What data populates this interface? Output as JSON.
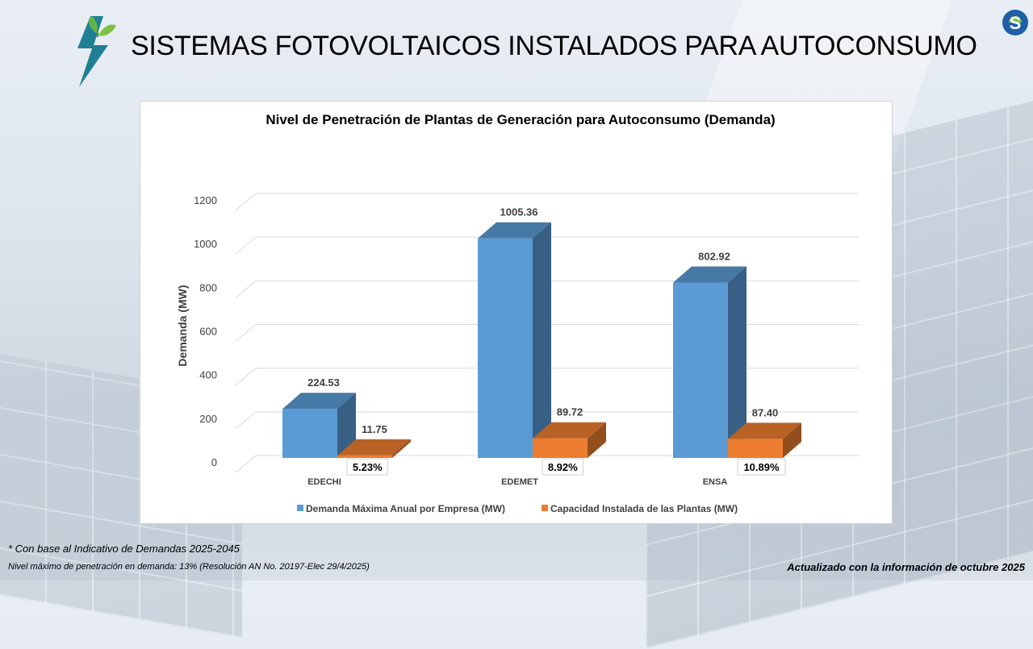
{
  "header": {
    "title": "SISTEMAS FOTOVOLTAICOS INSTALADOS PARA AUTOCONSUMO"
  },
  "chart_data": {
    "type": "bar",
    "title": "Nivel de Penetración de Plantas de Generación para Autoconsumo (Demanda)",
    "xlabel": "",
    "ylabel": "Demanda (MW)",
    "ylim": [
      0,
      1200
    ],
    "yticks": [
      0,
      200,
      400,
      600,
      800,
      1000,
      1200
    ],
    "categories": [
      "EDECHI",
      "EDEMET",
      "ENSA"
    ],
    "series": [
      {
        "name": "Demanda Máxima Anual por Empresa (MW)",
        "color": "#5b9bd5",
        "values": [
          224.53,
          1005.36,
          802.92
        ],
        "labels": [
          "224.53",
          "1005.36",
          "802.92"
        ]
      },
      {
        "name": "Capacidad Instalada de las Plantas (MW)",
        "color": "#ed7d31",
        "values": [
          11.75,
          89.72,
          87.4
        ],
        "labels": [
          "11.75",
          "89.72",
          "87.40"
        ]
      }
    ],
    "penetration_labels": [
      "5.23%",
      "8.92%",
      "10.89%"
    ],
    "legend_position": "bottom",
    "grid": true
  },
  "footer": {
    "note1": "* Con base al  Indicativo de Demandas 2025-2045",
    "note2": "Nivel máximo de penetración en demanda: 13% (Resolución AN No. 20197-Elec 29/4/2025)",
    "updated": "Actualizado con la información de octubre 2025"
  }
}
